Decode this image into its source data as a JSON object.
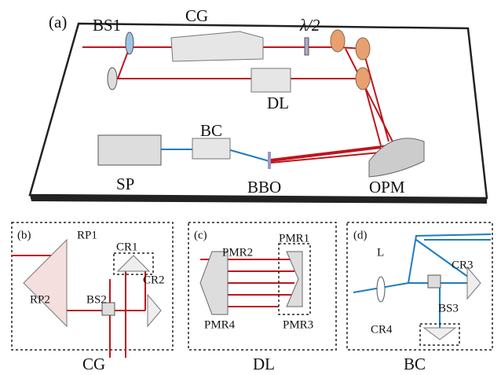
{
  "panels": [
    {
      "label": "(a)",
      "components": [
        "BS1",
        "CG",
        "λ/2",
        "DL",
        "BC",
        "SP",
        "BBO",
        "OPM"
      ]
    },
    {
      "label": "(b)",
      "caption": "CG",
      "components": [
        "RP1",
        "CR1",
        "CR2",
        "BS2",
        "RP2"
      ]
    },
    {
      "label": "(c)",
      "caption": "DL",
      "components": [
        "PMR2",
        "PMR1",
        "PMR4",
        "PMR3"
      ]
    },
    {
      "label": "(d)",
      "caption": "BC",
      "components": [
        "L",
        "CR3",
        "BS3",
        "CR4"
      ]
    }
  ]
}
